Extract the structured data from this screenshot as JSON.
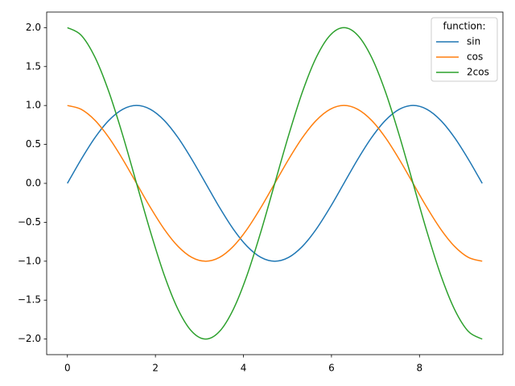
{
  "chart_data": {
    "type": "line",
    "legend_title": "function:",
    "legend": "upper right",
    "x": [
      0,
      0.314,
      0.628,
      0.942,
      1.257,
      1.571,
      1.885,
      2.199,
      2.513,
      2.827,
      3.142,
      3.456,
      3.77,
      4.084,
      4.398,
      4.712,
      5.027,
      5.341,
      5.655,
      5.969,
      6.283,
      6.597,
      6.912,
      7.226,
      7.54,
      7.854,
      8.168,
      8.482,
      8.796,
      9.111,
      9.425
    ],
    "series": [
      {
        "name": "sin",
        "color": "#1f77b4",
        "values": [
          0,
          0.309,
          0.588,
          0.809,
          0.951,
          1,
          0.951,
          0.809,
          0.588,
          0.309,
          0,
          -0.309,
          -0.588,
          -0.809,
          -0.951,
          -1,
          -0.951,
          -0.809,
          -0.588,
          -0.309,
          0,
          0.309,
          0.588,
          0.809,
          0.951,
          1,
          0.951,
          0.809,
          0.588,
          0.309,
          0
        ]
      },
      {
        "name": "cos",
        "color": "#ff7f0e",
        "values": [
          1,
          0.951,
          0.809,
          0.588,
          0.309,
          0,
          -0.309,
          -0.588,
          -0.809,
          -0.951,
          -1,
          -0.951,
          -0.809,
          -0.588,
          -0.309,
          0,
          0.309,
          0.588,
          0.809,
          0.951,
          1,
          0.951,
          0.809,
          0.588,
          0.309,
          0,
          -0.309,
          -0.588,
          -0.809,
          -0.951,
          -1
        ]
      },
      {
        "name": "2cos",
        "color": "#2ca02c",
        "values": [
          2,
          1.902,
          1.618,
          1.176,
          0.618,
          0,
          -0.618,
          -1.176,
          -1.618,
          -1.902,
          -2,
          -1.902,
          -1.618,
          -1.176,
          -0.618,
          0,
          0.618,
          1.176,
          1.618,
          1.902,
          2,
          1.902,
          1.618,
          1.176,
          0.618,
          0,
          -0.618,
          -1.176,
          -1.618,
          -1.902,
          -2
        ]
      }
    ],
    "xlim": [
      -0.471,
      9.896
    ],
    "ylim": [
      -2.2,
      2.2
    ],
    "xticks": [
      0,
      2,
      4,
      6,
      8
    ],
    "yticks": [
      {
        "value": 2.0,
        "label": "2.0"
      },
      1.5,
      {
        "value": 1.0,
        "label": "1.0"
      },
      0.5,
      {
        "value": 0.0,
        "label": "0.0"
      },
      {
        "value": -0.5,
        "label": "−0.5"
      },
      {
        "value": -1.0,
        "label": "−1.0"
      },
      {
        "value": -1.5,
        "label": "−1.5"
      },
      {
        "value": -2.0,
        "label": "−2.0"
      }
    ]
  }
}
